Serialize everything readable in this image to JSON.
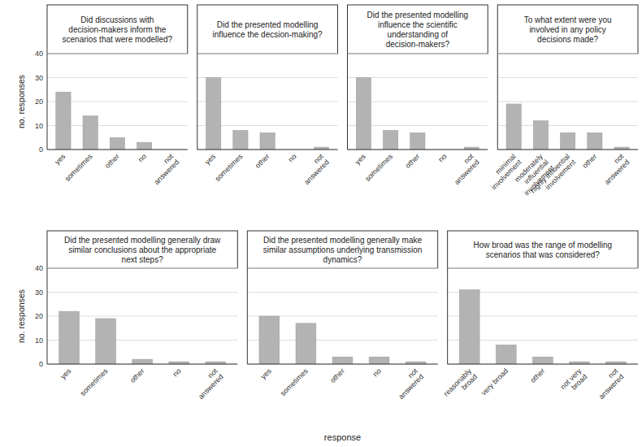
{
  "chart_data": [
    {
      "type": "bar",
      "title": "Did discussions with\ndecision-makers inform the\nscenarios that were modelled?",
      "categories": [
        "yes",
        "sometimes",
        "other",
        "no",
        "not\nanswered"
      ],
      "values": [
        24,
        14,
        5,
        3,
        0
      ],
      "color": "#b3b3b3",
      "ylim": [
        0,
        40
      ],
      "yticks": [
        0,
        10,
        20,
        30,
        40
      ],
      "grid": true,
      "ylabel": "no. responses"
    },
    {
      "type": "bar",
      "title": "Did the presented modelling\ninfluence the decsion-making?",
      "categories": [
        "yes",
        "sometimes",
        "other",
        "no",
        "not\nanswered"
      ],
      "values": [
        30,
        8,
        7,
        0,
        1
      ],
      "color": "#b3b3b3",
      "ylim": [
        0,
        40
      ],
      "yticks": [
        0,
        10,
        20,
        30,
        40
      ],
      "grid": true,
      "tick_labels": "x"
    },
    {
      "type": "bar",
      "title": "Did the presented modelling\ninfluence the scientific\nunderstanding of\ndecision-makers?",
      "categories": [
        "yes",
        "sometimes",
        "other",
        "no",
        "not\nanswered"
      ],
      "values": [
        30,
        8,
        7,
        0,
        1
      ],
      "color": "#b3b3b3",
      "ylim": [
        0,
        40
      ],
      "yticks": [
        0,
        10,
        20,
        30,
        40
      ],
      "grid": true,
      "tick_labels": "x"
    },
    {
      "type": "bar",
      "title": "To what extent were you\ninvolved in any policy\ndecisions made?",
      "categories": [
        "minimal\ninvolvement",
        "moderately\ninfluential\ninvolvement",
        "highly influential\ninvolvement",
        "other",
        "not\nanswered"
      ],
      "values": [
        19,
        12,
        7,
        7,
        1
      ],
      "color": "#b3b3b3",
      "ylim": [
        0,
        40
      ],
      "yticks": [
        0,
        10,
        20,
        30,
        40
      ],
      "grid": true,
      "tick_labels": "x"
    },
    {
      "type": "bar",
      "title": "Did the presented modelling generally draw\nsimilar conclusions about the appropriate\nnext steps?",
      "categories": [
        "yes",
        "sometimes",
        "other",
        "no",
        "not\nanswered"
      ],
      "values": [
        22,
        19,
        2,
        1,
        1
      ],
      "color": "#b3b3b3",
      "ylim": [
        0,
        40
      ],
      "yticks": [
        0,
        10,
        20,
        30,
        40
      ],
      "grid": true,
      "ylabel": "no. responses"
    },
    {
      "type": "bar",
      "title": "Did the presented modelling generally make\nsimilar assumptions underlying transmission\ndynamics?",
      "categories": [
        "yes",
        "sometimes",
        "other",
        "no",
        "not\nanswered"
      ],
      "values": [
        20,
        17,
        3,
        3,
        1
      ],
      "color": "#b3b3b3",
      "ylim": [
        0,
        40
      ],
      "yticks": [
        0,
        10,
        20,
        30,
        40
      ],
      "grid": true,
      "tick_labels": "x",
      "xlabel": "response"
    },
    {
      "type": "bar",
      "title": "How broad was the range of modelling\nscenarios that was considered?",
      "categories": [
        "reasonably\nbroad",
        "very broad",
        "other",
        "not very\nbroad",
        "not\nanswered"
      ],
      "values": [
        31,
        8,
        3,
        1,
        1
      ],
      "color": "#b3b3b3",
      "ylim": [
        0,
        40
      ],
      "yticks": [
        0,
        10,
        20,
        30,
        40
      ],
      "grid": true,
      "tick_labels": "x"
    }
  ]
}
